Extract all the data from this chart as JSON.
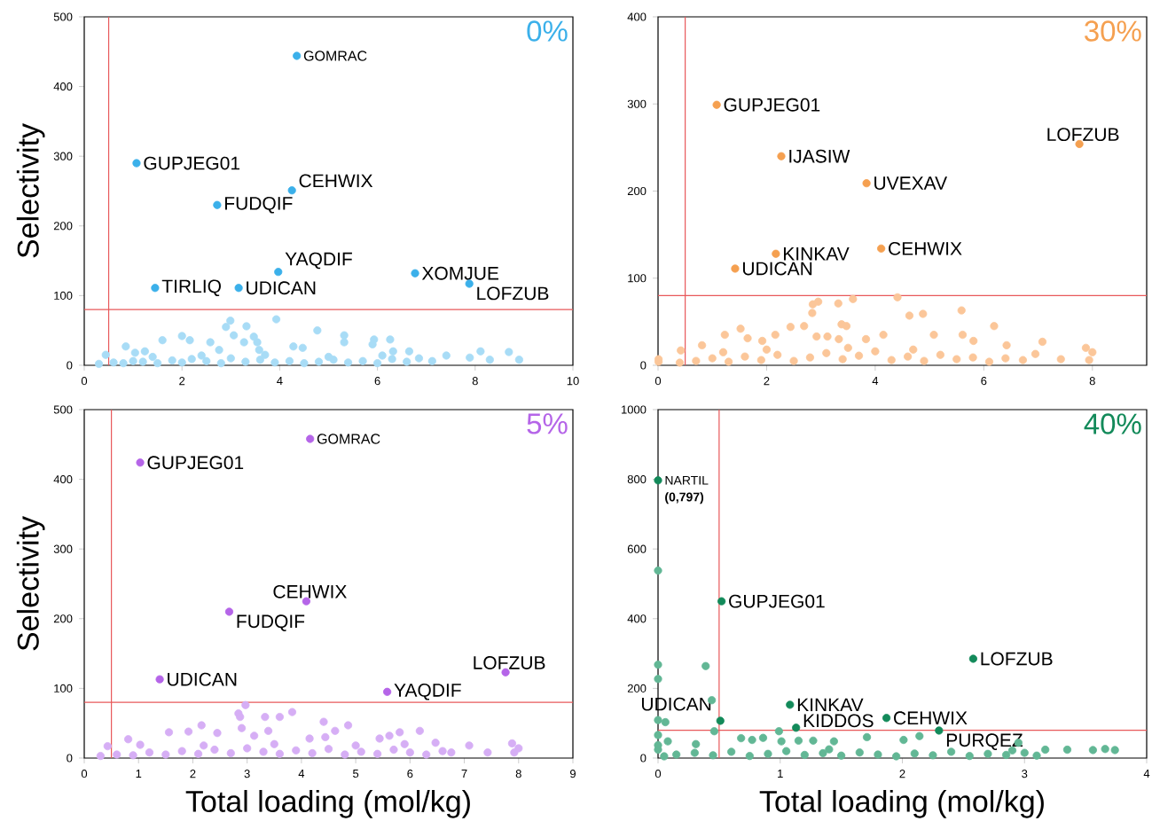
{
  "chart_data": [
    {
      "type": "scatter",
      "ylabel": "Selectivity",
      "xlim": [
        0,
        10
      ],
      "ylim": [
        0,
        500
      ],
      "xticks": [
        0,
        2,
        4,
        6,
        8,
        10
      ],
      "yticks": [
        0,
        100,
        200,
        300,
        400,
        500
      ],
      "series": [
        {
          "color": "#a8dcf6",
          "x": [
            2.99,
            3.93,
            2.9,
            3.32,
            3.06,
            4.77,
            5.32,
            5.32,
            1.6,
            2.0,
            2.16,
            0.85,
            2.58,
            3.47,
            3.54,
            3.27,
            5.93,
            6.26,
            5.9,
            4.28,
            4.47,
            7.41,
            8.11,
            8.69,
            8.9,
            8.3,
            7.89,
            7.12,
            6.85,
            6.65,
            6.32,
            0.44,
            1.24,
            1.04,
            2.76,
            3.58,
            0.3,
            0.6,
            0.8,
            1.0,
            1.2,
            1.5,
            1.8,
            2.0,
            2.2,
            2.5,
            2.8,
            3.0,
            3.3,
            3.6,
            3.9,
            4.2,
            4.5,
            4.8,
            5.1,
            5.4,
            5.7,
            6.0,
            6.3,
            6.6,
            2.4,
            3.7,
            1.4,
            5.0,
            6.1
          ],
          "values": [
            64,
            66,
            55,
            56,
            43,
            50,
            43,
            33,
            36,
            42,
            36,
            27,
            33,
            41,
            33,
            33,
            37,
            37,
            30,
            27,
            25,
            14,
            20,
            19,
            8,
            8,
            11,
            6,
            10,
            20,
            20,
            15,
            20,
            18,
            22,
            22,
            2,
            4,
            3,
            6,
            5,
            3,
            7,
            4,
            9,
            6,
            3,
            10,
            5,
            8,
            4,
            6,
            3,
            5,
            8,
            4,
            6,
            3,
            9,
            5,
            14,
            15,
            12,
            12,
            14
          ]
        },
        {
          "color": "#3bb0ea",
          "x": [
            4.35,
            1.07,
            4.25,
            2.72,
            3.97,
            6.77,
            1.45,
            3.16,
            7.88
          ],
          "values": [
            444,
            290,
            251,
            230,
            134,
            132,
            111,
            111,
            117
          ]
        }
      ],
      "ref_lines": [
        {
          "axis": "x",
          "value": 0.5,
          "color": "#e8585a"
        },
        {
          "axis": "y",
          "value": 80,
          "color": "#e8585a"
        }
      ],
      "annotations": [
        "0%",
        {
          "text": "GOMRAC",
          "x": 4.35,
          "y": 444
        },
        {
          "text": "GUPJEG01",
          "x": 1.07,
          "y": 290
        },
        {
          "text": "CEHWIX",
          "x": 4.25,
          "y": 251
        },
        {
          "text": "FUDQIF",
          "x": 2.72,
          "y": 230
        },
        {
          "text": "YAQDIF",
          "x": 3.97,
          "y": 134
        },
        {
          "text": "XOMJUE",
          "x": 6.77,
          "y": 132
        },
        {
          "text": "TIRLIQ",
          "x": 1.45,
          "y": 111
        },
        {
          "text": "UDICAN",
          "x": 3.16,
          "y": 111
        },
        {
          "text": "LOFZUB",
          "x": 7.88,
          "y": 117
        }
      ]
    },
    {
      "type": "scatter",
      "xlim": [
        0,
        9
      ],
      "ylim": [
        0,
        400
      ],
      "xticks": [
        0,
        2,
        4,
        6,
        8
      ],
      "yticks": [
        0,
        100,
        200,
        300,
        400
      ],
      "series": [
        {
          "color": "#fbc699",
          "x": [
            2.85,
            2.95,
            3.32,
            3.59,
            4.41,
            2.84,
            4.63,
            4.88,
            5.59,
            6.19,
            2.69,
            2.44,
            3.38,
            3.47,
            1.52,
            1.23,
            1.65,
            2.16,
            1.92,
            2.92,
            3.12,
            3.33,
            3.83,
            4.15,
            5.08,
            5.61,
            5.81,
            6.42,
            7.08,
            7.88,
            8.0,
            7.94,
            7.42,
            6.72,
            6.95,
            0.81,
            0.42,
            0.01,
            0.01,
            0.4,
            0.7,
            1.0,
            1.3,
            1.6,
            1.9,
            2.2,
            2.5,
            2.8,
            3.1,
            3.4,
            3.7,
            4.0,
            4.3,
            4.6,
            4.9,
            5.2,
            5.5,
            5.8,
            6.1,
            6.4,
            2.0,
            3.5,
            1.2,
            4.7
          ],
          "values": [
            70,
            73,
            71,
            76,
            78,
            60,
            57,
            59,
            63,
            45,
            45,
            44,
            47,
            45,
            42,
            35,
            31,
            35,
            28,
            33,
            33,
            30,
            30,
            35,
            35,
            35,
            28,
            23,
            27,
            20,
            15,
            6,
            7,
            6,
            13,
            23,
            17,
            7,
            4,
            3,
            5,
            8,
            4,
            10,
            6,
            12,
            5,
            9,
            14,
            7,
            11,
            16,
            6,
            10,
            5,
            12,
            7,
            9,
            4,
            8,
            18,
            20,
            15,
            18
          ]
        },
        {
          "color": "#f5a050",
          "x": [
            1.08,
            7.76,
            2.27,
            3.84,
            2.17,
            4.11,
            1.42
          ],
          "values": [
            299,
            254,
            240,
            209,
            128,
            134,
            111
          ]
        }
      ],
      "ref_lines": [
        {
          "axis": "x",
          "value": 0.5,
          "color": "#e8585a"
        },
        {
          "axis": "y",
          "value": 80,
          "color": "#e8585a"
        }
      ],
      "annotations": [
        "30%",
        {
          "text": "GUPJEG01",
          "x": 1.08,
          "y": 299
        },
        {
          "text": "LOFZUB",
          "x": 7.76,
          "y": 254
        },
        {
          "text": "IJASIW",
          "x": 2.27,
          "y": 240
        },
        {
          "text": "UVEXAV",
          "x": 3.84,
          "y": 209
        },
        {
          "text": "KINKAV",
          "x": 2.17,
          "y": 128
        },
        {
          "text": "CEHWIX",
          "x": 4.11,
          "y": 134
        },
        {
          "text": "UDICAN",
          "x": 1.42,
          "y": 111
        }
      ]
    },
    {
      "type": "scatter",
      "xlabel": "Total loading (mol/kg)",
      "ylabel": "Selectivity",
      "xlim": [
        0,
        9
      ],
      "ylim": [
        0,
        500
      ],
      "xticks": [
        0,
        1,
        2,
        3,
        4,
        5,
        6,
        7,
        8,
        9
      ],
      "yticks": [
        0,
        100,
        200,
        300,
        400,
        500
      ],
      "series": [
        {
          "color": "#d6aef5",
          "x": [
            2.97,
            2.84,
            2.87,
            3.33,
            3.6,
            3.83,
            4.41,
            4.86,
            4.62,
            2.9,
            2.16,
            1.92,
            1.56,
            0.81,
            2.45,
            3.13,
            3.39,
            6.18,
            5.81,
            5.62,
            5.44,
            6.47,
            7.09,
            7.88,
            8.0,
            7.92,
            7.43,
            6.76,
            0.43,
            1.03,
            4.15,
            4.44,
            0.3,
            0.6,
            0.9,
            1.2,
            1.5,
            1.8,
            2.1,
            2.4,
            2.7,
            3.0,
            3.3,
            3.6,
            3.9,
            4.2,
            4.5,
            4.8,
            5.1,
            5.4,
            5.7,
            6.0,
            6.3,
            6.6,
            2.2,
            3.5,
            5.0,
            5.9
          ],
          "values": [
            76,
            64,
            59,
            59,
            59,
            66,
            52,
            47,
            39,
            43,
            47,
            38,
            37,
            27,
            36,
            32,
            39,
            39,
            37,
            32,
            28,
            22,
            18,
            21,
            14,
            8,
            8,
            8,
            17,
            19,
            28,
            30,
            3,
            5,
            4,
            8,
            5,
            10,
            6,
            12,
            7,
            14,
            9,
            6,
            11,
            7,
            13,
            5,
            9,
            6,
            12,
            8,
            5,
            10,
            18,
            20,
            18,
            20
          ]
        },
        {
          "color": "#b565e8",
          "x": [
            1.03,
            4.16,
            4.09,
            2.67,
            1.39,
            5.58,
            7.76
          ],
          "values": [
            424,
            458,
            225,
            210,
            113,
            95,
            123
          ]
        }
      ],
      "ref_lines": [
        {
          "axis": "x",
          "value": 0.5,
          "color": "#e8585a"
        },
        {
          "axis": "y",
          "value": 80,
          "color": "#e8585a"
        }
      ],
      "annotations": [
        "5%",
        {
          "text": "GUPJEG01",
          "x": 1.03,
          "y": 424
        },
        {
          "text": "GOMRAC",
          "x": 4.16,
          "y": 458
        },
        {
          "text": "CEHWIX",
          "x": 4.09,
          "y": 225
        },
        {
          "text": "FUDQIF",
          "x": 2.67,
          "y": 210
        },
        {
          "text": "UDICAN",
          "x": 1.39,
          "y": 113
        },
        {
          "text": "YAQDIF",
          "x": 5.58,
          "y": 95
        },
        {
          "text": "LOFZUB",
          "x": 7.76,
          "y": 123
        }
      ]
    },
    {
      "type": "scatter",
      "xlabel": "Total loading (mol/kg)",
      "xlim": [
        0,
        4
      ],
      "ylim": [
        0,
        1000
      ],
      "xticks": [
        0,
        1,
        2,
        3,
        4
      ],
      "yticks": [
        0,
        200,
        400,
        600,
        800,
        1000
      ],
      "series": [
        {
          "color": "#62b795",
          "x": [
            0,
            0,
            0,
            0.39,
            0.44,
            0,
            0.06,
            0,
            0.46,
            0.99,
            0.68,
            0.77,
            0.86,
            1.01,
            1.15,
            1.27,
            1.44,
            1.71,
            2.01,
            2.14,
            2.95,
            3.66,
            3.74,
            3.56,
            3.35,
            3.17,
            0.31,
            0.08,
            0,
            0,
            0.05,
            0.15,
            0.3,
            0.45,
            0.6,
            0.75,
            0.9,
            1.05,
            1.2,
            1.35,
            1.5,
            1.65,
            1.8,
            1.95,
            2.1,
            2.25,
            2.4,
            2.55,
            2.7,
            2.85,
            3.0,
            3.1,
            2.9,
            1.4
          ],
          "values": [
            538,
            268,
            227,
            264,
            166,
            109,
            103,
            66,
            77,
            77,
            57,
            52,
            58,
            48,
            50,
            50,
            48,
            60,
            52,
            63,
            44,
            26,
            23,
            23,
            24,
            24,
            40,
            48,
            24,
            37,
            5,
            10,
            15,
            8,
            18,
            6,
            12,
            20,
            9,
            14,
            7,
            16,
            10,
            5,
            13,
            8,
            18,
            6,
            12,
            9,
            15,
            7,
            22,
            25
          ]
        },
        {
          "color": "#138a5a",
          "x": [
            0,
            0.52,
            2.58,
            1.08,
            0.51,
            1.87,
            1.13,
            2.3
          ],
          "values": [
            797,
            450,
            285,
            153,
            107,
            115,
            87,
            79
          ]
        }
      ],
      "ref_lines": [
        {
          "axis": "x",
          "value": 0.5,
          "color": "#e8585a"
        },
        {
          "axis": "y",
          "value": 80,
          "color": "#e8585a"
        }
      ],
      "annotations": [
        "40%",
        {
          "text": "NARTIL",
          "x": 0,
          "y": 797
        },
        {
          "text": "(0,797)",
          "x": 0,
          "y": 797
        },
        {
          "text": "GUPJEG01",
          "x": 0.52,
          "y": 450
        },
        {
          "text": "LOFZUB",
          "x": 2.58,
          "y": 285
        },
        {
          "text": "KINKAV",
          "x": 1.08,
          "y": 153
        },
        {
          "text": "UDICAN",
          "x": 0.51,
          "y": 107
        },
        {
          "text": "CEHWIX",
          "x": 1.87,
          "y": 115
        },
        {
          "text": "KIDDOS",
          "x": 1.13,
          "y": 87
        },
        {
          "text": "PURQEZ",
          "x": 2.3,
          "y": 79
        }
      ]
    }
  ]
}
